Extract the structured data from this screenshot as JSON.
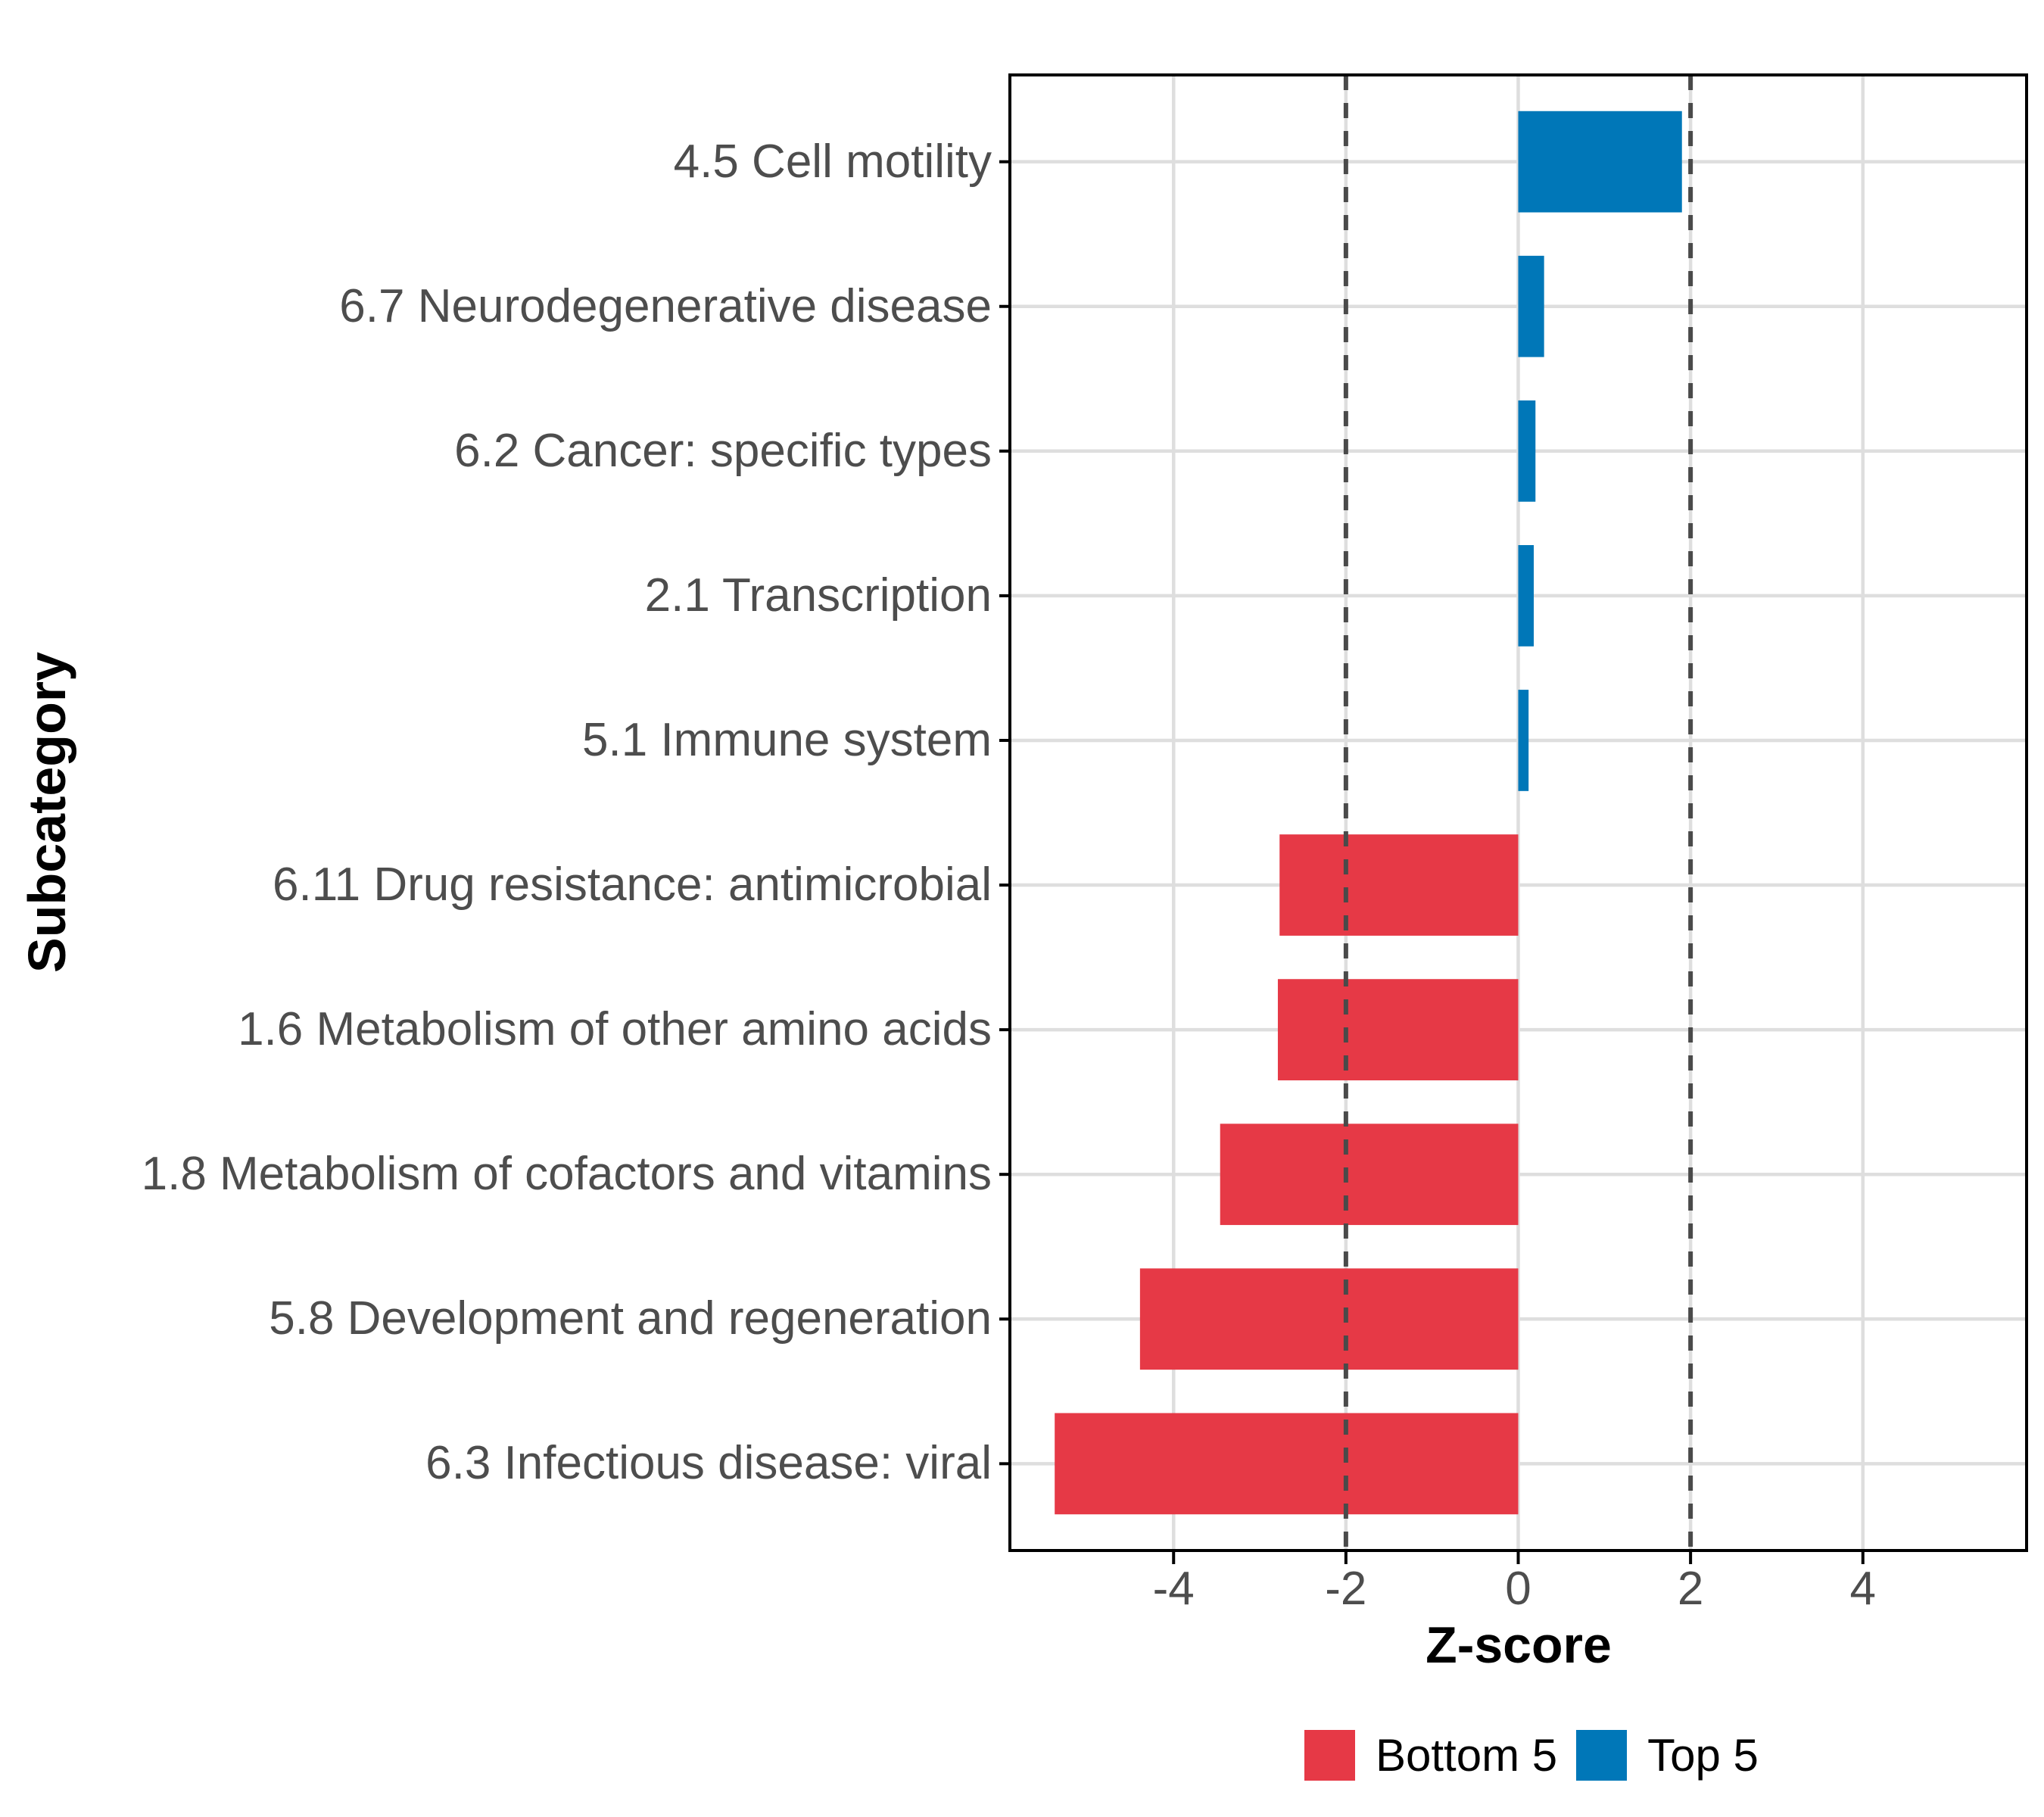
{
  "chart_data": {
    "type": "bar",
    "orientation": "horizontal",
    "title": "",
    "xlabel": "Z-score",
    "ylabel": "Subcategory",
    "xlim": [
      -5.9,
      5.9
    ],
    "x_ticks": [
      -4,
      -2,
      0,
      2,
      4
    ],
    "dashed_reference_lines": [
      -2,
      2
    ],
    "grid": true,
    "legend_position": "bottom-center",
    "bars": [
      {
        "label": "4.5 Cell motility",
        "value": 1.9,
        "group": "Top 5"
      },
      {
        "label": "6.7 Neurodegenerative disease",
        "value": 0.3,
        "group": "Top 5"
      },
      {
        "label": "6.2 Cancer: specific types",
        "value": 0.2,
        "group": "Top 5"
      },
      {
        "label": "2.1 Transcription",
        "value": 0.18,
        "group": "Top 5"
      },
      {
        "label": "5.1 Immune system",
        "value": 0.12,
        "group": "Top 5"
      },
      {
        "label": "6.11 Drug resistance: antimicrobial",
        "value": -2.77,
        "group": "Bottom 5"
      },
      {
        "label": "1.6 Metabolism of other amino acids",
        "value": -2.79,
        "group": "Bottom 5"
      },
      {
        "label": "1.8 Metabolism of cofactors and vitamins",
        "value": -3.46,
        "group": "Bottom 5"
      },
      {
        "label": "5.8 Development and regeneration",
        "value": -4.39,
        "group": "Bottom 5"
      },
      {
        "label": "6.3 Infectious disease: viral",
        "value": -5.38,
        "group": "Bottom 5"
      }
    ],
    "legend": [
      {
        "label": "Bottom 5",
        "color": "#E63946"
      },
      {
        "label": "Top 5",
        "color": "#0077B8"
      }
    ],
    "colors": {
      "bottom5": "#E63946",
      "top5": "#0077B8",
      "gridline": "#DEDEDE",
      "dashed_line": "#4A4A4A",
      "panel_border": "#000000",
      "tick_mark": "#000000",
      "axis_text": "#4D4D4D",
      "title_text": "#000000",
      "background": "#FFFFFF"
    }
  }
}
